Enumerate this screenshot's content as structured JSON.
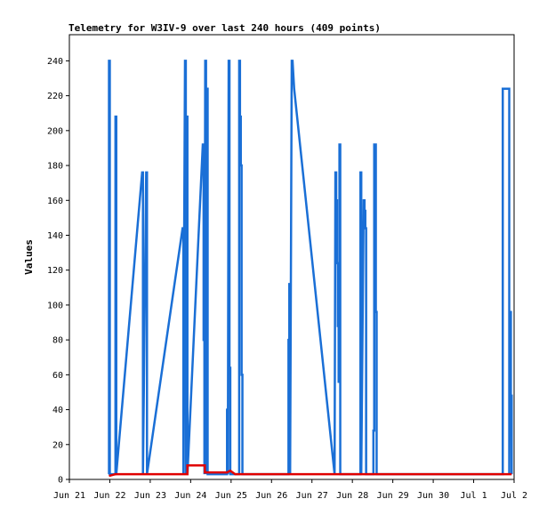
{
  "chart_data": {
    "type": "line",
    "title": "Telemetry for W3IV-9 over last 240 hours (409 points)",
    "xlabel": "",
    "ylabel": "Values",
    "xlim": [
      "Jun 21",
      "Jul 2"
    ],
    "ylim": [
      0,
      255
    ],
    "x_ticks": [
      "Jun 21",
      "Jun 22",
      "Jun 23",
      "Jun 24",
      "Jun 25",
      "Jun 26",
      "Jun 27",
      "Jun 28",
      "Jun 29",
      "Jun 30",
      "Jul 1",
      "Jul 2"
    ],
    "y_ticks": [
      0,
      20,
      40,
      60,
      80,
      100,
      120,
      140,
      160,
      180,
      200,
      220,
      240
    ],
    "grid": false,
    "legend": "none",
    "series": [
      {
        "color": "#1a6fd6",
        "x_unit": "days after Jun 21 00:00",
        "points": [
          [
            0.98,
            3
          ],
          [
            0.98,
            240
          ],
          [
            1.0,
            240
          ],
          [
            1.0,
            3
          ],
          [
            1.14,
            3
          ],
          [
            1.14,
            208
          ],
          [
            1.16,
            208
          ],
          [
            1.16,
            3
          ],
          [
            1.8,
            176
          ],
          [
            1.82,
            176
          ],
          [
            1.82,
            3
          ],
          [
            1.9,
            176
          ],
          [
            1.92,
            176
          ],
          [
            1.92,
            3
          ],
          [
            2.8,
            144
          ],
          [
            2.82,
            144
          ],
          [
            2.82,
            3
          ],
          [
            2.84,
            144
          ],
          [
            2.86,
            240
          ],
          [
            2.88,
            240
          ],
          [
            2.88,
            3
          ],
          [
            2.9,
            208
          ],
          [
            2.92,
            208
          ],
          [
            2.92,
            3
          ],
          [
            3.3,
            192
          ],
          [
            3.32,
            192
          ],
          [
            3.32,
            80
          ],
          [
            3.34,
            80
          ],
          [
            3.34,
            3
          ],
          [
            3.36,
            240
          ],
          [
            3.38,
            240
          ],
          [
            3.38,
            3
          ],
          [
            3.4,
            224
          ],
          [
            3.42,
            224
          ],
          [
            3.42,
            3
          ],
          [
            3.9,
            3
          ],
          [
            3.9,
            40
          ],
          [
            3.92,
            40
          ],
          [
            3.92,
            3
          ],
          [
            3.94,
            240
          ],
          [
            3.96,
            240
          ],
          [
            3.96,
            64
          ],
          [
            3.98,
            64
          ],
          [
            3.98,
            3
          ],
          [
            4.2,
            3
          ],
          [
            4.2,
            240
          ],
          [
            4.22,
            240
          ],
          [
            4.22,
            208
          ],
          [
            4.24,
            208
          ],
          [
            4.24,
            180
          ],
          [
            4.26,
            180
          ],
          [
            4.26,
            60
          ],
          [
            4.28,
            60
          ],
          [
            4.28,
            3
          ],
          [
            5.42,
            3
          ],
          [
            5.42,
            80
          ],
          [
            5.44,
            80
          ],
          [
            5.44,
            112
          ],
          [
            5.46,
            112
          ],
          [
            5.46,
            3
          ],
          [
            5.5,
            240
          ],
          [
            5.52,
            240
          ],
          [
            5.56,
            224
          ],
          [
            6.56,
            3
          ],
          [
            6.58,
            176
          ],
          [
            6.6,
            176
          ],
          [
            6.6,
            160
          ],
          [
            6.62,
            160
          ],
          [
            6.62,
            124
          ],
          [
            6.64,
            124
          ],
          [
            6.64,
            88
          ],
          [
            6.66,
            88
          ],
          [
            6.66,
            56
          ],
          [
            6.68,
            56
          ],
          [
            6.68,
            192
          ],
          [
            6.7,
            192
          ],
          [
            6.7,
            3
          ],
          [
            7.2,
            3
          ],
          [
            7.2,
            176
          ],
          [
            7.22,
            176
          ],
          [
            7.22,
            3
          ],
          [
            7.28,
            160
          ],
          [
            7.3,
            160
          ],
          [
            7.3,
            154
          ],
          [
            7.32,
            154
          ],
          [
            7.32,
            144
          ],
          [
            7.34,
            144
          ],
          [
            7.34,
            3
          ],
          [
            7.52,
            3
          ],
          [
            7.52,
            28
          ],
          [
            7.54,
            28
          ],
          [
            7.54,
            192
          ],
          [
            7.58,
            192
          ],
          [
            7.58,
            96
          ],
          [
            7.6,
            96
          ],
          [
            7.6,
            3
          ],
          [
            10.72,
            3
          ],
          [
            10.72,
            224
          ],
          [
            10.88,
            224
          ],
          [
            10.88,
            3
          ],
          [
            10.9,
            96
          ],
          [
            10.92,
            96
          ],
          [
            10.92,
            48
          ],
          [
            10.94,
            48
          ],
          [
            10.94,
            3
          ]
        ]
      },
      {
        "color": "#e00000",
        "x_unit": "days after Jun 21 00:00",
        "points": [
          [
            0.98,
            2
          ],
          [
            1.14,
            3
          ],
          [
            1.5,
            3
          ],
          [
            2.5,
            3
          ],
          [
            2.92,
            3
          ],
          [
            2.92,
            8
          ],
          [
            3.35,
            8
          ],
          [
            3.35,
            4
          ],
          [
            3.9,
            4
          ],
          [
            3.98,
            5
          ],
          [
            4.1,
            3
          ],
          [
            5.0,
            3
          ],
          [
            6.0,
            3
          ],
          [
            7.0,
            3
          ],
          [
            8.0,
            3
          ],
          [
            9.0,
            3
          ],
          [
            10.0,
            3
          ],
          [
            10.94,
            3
          ]
        ]
      }
    ]
  }
}
